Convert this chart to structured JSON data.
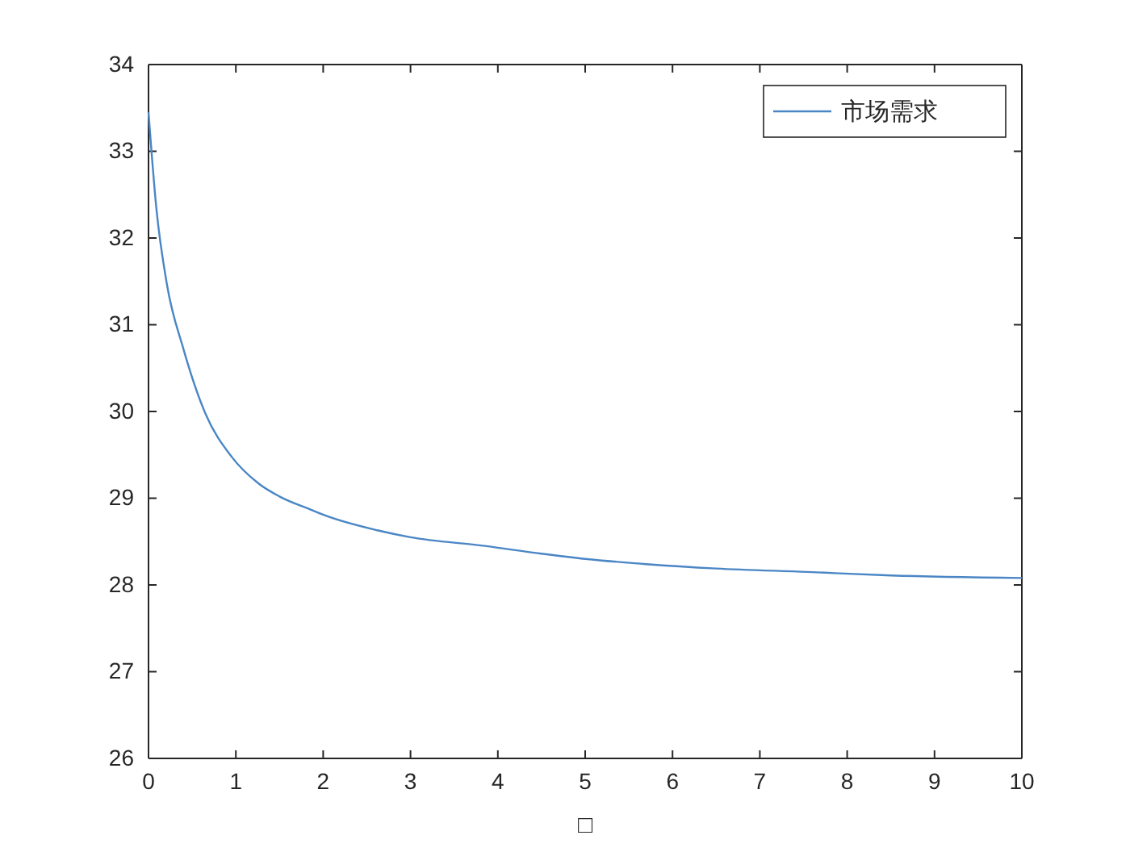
{
  "chart_data": {
    "type": "line",
    "xlabel": "□",
    "x": [
      0,
      0.09,
      0.21,
      0.4,
      0.65,
      0.95,
      1.26,
      1.5,
      1.88,
      2.0,
      2.62,
      3.0,
      3.85,
      4.5,
      5.0,
      5.7,
      6.5,
      7.54,
      8.5,
      10
    ],
    "series": [
      {
        "name": "市场需求",
        "color": "#4a86c5",
        "values": [
          33.45,
          32.34,
          31.47,
          30.72,
          29.98,
          29.48,
          29.17,
          29.02,
          28.86,
          28.81,
          28.63,
          28.55,
          28.45,
          28.36,
          28.3,
          28.24,
          28.19,
          28.15,
          28.11,
          28.08
        ]
      }
    ],
    "xlim": [
      0,
      10
    ],
    "xticks": [
      0,
      1,
      2,
      3,
      4,
      5,
      6,
      7,
      8,
      9,
      10
    ],
    "ylim": [
      26,
      34
    ],
    "yticks": [
      26,
      27,
      28,
      29,
      30,
      31,
      32,
      33,
      34
    ],
    "grid": false,
    "legend": "top right",
    "marker": "none",
    "line_style": "solid"
  }
}
